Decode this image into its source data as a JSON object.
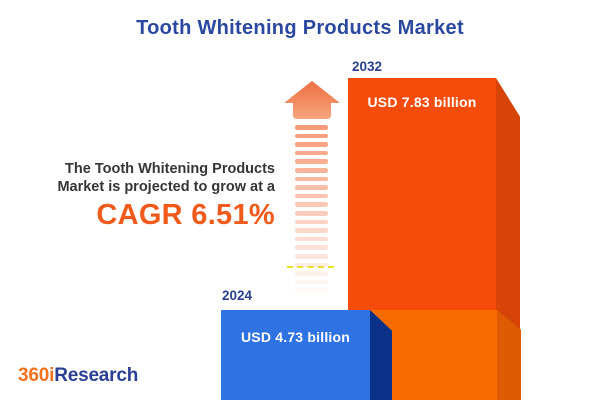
{
  "title": "Tooth Whitening Products Market",
  "description": {
    "line1": "The Tooth Whitening Products",
    "line2": "Market is projected to grow at a",
    "cagr": "CAGR 6.51%"
  },
  "bars": {
    "b2024": {
      "year": "2024",
      "value": "USD 4.73 billion"
    },
    "b2032": {
      "year": "2032",
      "value": "USD 7.83 billion"
    }
  },
  "logo": {
    "prefix": "360i",
    "suffix": "Research"
  },
  "colors": {
    "title_blue": "#2B48A0",
    "year_label_blue": "#2B418F",
    "description_text": "#363636",
    "cagr_orange": "#F05A1B",
    "bar_2024_front": "#2E72E4",
    "bar_2024_side": "#0A3188",
    "bar_2032_front": "#F54C0C",
    "bar_2032_side": "#D64507",
    "bar_2032_lower_front": "#F86B01",
    "bar_2032_lower_side": "#DE5A03",
    "arrow_coral": "#EF774A",
    "logo_orange": "#F2711F",
    "logo_navy": "#2B3F94"
  },
  "chart_data": {
    "type": "bar",
    "title": "Tooth Whitening Products Market",
    "categories": [
      "2024",
      "2032"
    ],
    "values": [
      4.73,
      7.83
    ],
    "unit": "USD billion",
    "value_labels": [
      "USD 4.73 billion",
      "USD 7.83 billion"
    ],
    "cagr_percent": 6.51,
    "annotation": "The Tooth Whitening Products Market is projected to grow at a CAGR 6.51%",
    "legend": "none",
    "grid": false,
    "bar_colors": [
      "#2E72E4",
      "#F54C0C"
    ]
  }
}
